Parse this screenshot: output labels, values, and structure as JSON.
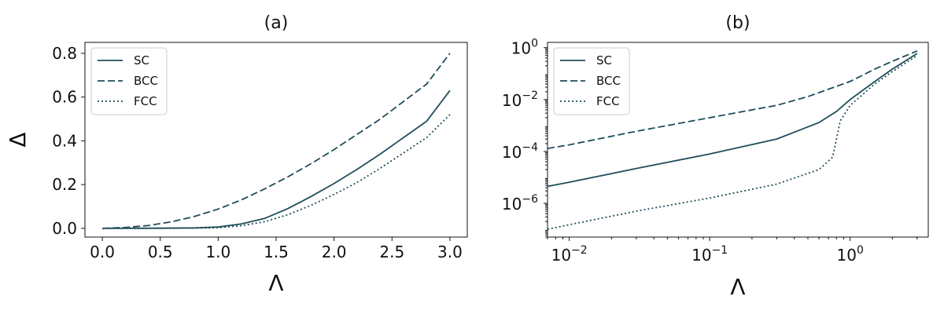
{
  "chart_data": [
    {
      "id": "a",
      "type": "line",
      "title": "(a)",
      "xlabel": "Λ",
      "ylabel": "Δ",
      "xscale": "linear",
      "yscale": "linear",
      "xlim": [
        -0.15,
        3.15
      ],
      "ylim": [
        -0.04,
        0.85
      ],
      "xticks": [
        0.0,
        0.5,
        1.0,
        1.5,
        2.0,
        2.5,
        3.0
      ],
      "xtick_labels": [
        "0.0",
        "0.5",
        "1.0",
        "1.5",
        "2.0",
        "2.5",
        "3.0"
      ],
      "yticks": [
        0.0,
        0.2,
        0.4,
        0.6,
        0.8
      ],
      "ytick_labels": [
        "0.0",
        "0.2",
        "0.4",
        "0.6",
        "0.8"
      ],
      "grid": false,
      "legend": "top-left",
      "series": [
        {
          "name": "SC",
          "style": "solid",
          "x": [
            0,
            0.5,
            0.8,
            1.0,
            1.2,
            1.4,
            1.6,
            1.8,
            2.0,
            2.2,
            2.4,
            2.6,
            2.8,
            3.0
          ],
          "y": [
            0,
            0.0005,
            0.002,
            0.006,
            0.02,
            0.045,
            0.09,
            0.145,
            0.205,
            0.27,
            0.34,
            0.415,
            0.49,
            0.63
          ]
        },
        {
          "name": "BCC",
          "style": "dashed",
          "x": [
            0,
            0.2,
            0.4,
            0.6,
            0.8,
            1.0,
            1.2,
            1.4,
            1.6,
            1.8,
            2.0,
            2.2,
            2.4,
            2.6,
            2.8,
            3.0
          ],
          "y": [
            0,
            0.004,
            0.013,
            0.03,
            0.055,
            0.088,
            0.13,
            0.18,
            0.235,
            0.295,
            0.36,
            0.43,
            0.5,
            0.58,
            0.66,
            0.8
          ]
        },
        {
          "name": "FCC",
          "style": "dotted",
          "x": [
            0,
            0.5,
            0.8,
            1.0,
            1.2,
            1.4,
            1.6,
            1.8,
            2.0,
            2.2,
            2.4,
            2.6,
            2.8,
            3.0
          ],
          "y": [
            0,
            0.0003,
            0.001,
            0.003,
            0.012,
            0.03,
            0.062,
            0.105,
            0.155,
            0.21,
            0.275,
            0.345,
            0.415,
            0.52
          ]
        }
      ]
    },
    {
      "id": "b",
      "type": "line",
      "title": "(b)",
      "xlabel": "Λ",
      "ylabel": "",
      "xscale": "log",
      "yscale": "log",
      "xlim": [
        0.007,
        3.6
      ],
      "ylim": [
        5e-08,
        1.6
      ],
      "xticks": [
        0.01,
        0.1,
        1
      ],
      "xtick_labels": [
        [
          "10",
          "−2"
        ],
        [
          "10",
          "−1"
        ],
        [
          "10",
          "0"
        ]
      ],
      "yticks": [
        1e-06,
        0.0001,
        0.01,
        1
      ],
      "ytick_labels": [
        [
          "10",
          "−6"
        ],
        [
          "10",
          "−4"
        ],
        [
          "10",
          "−2"
        ],
        [
          "10",
          "0"
        ]
      ],
      "grid": false,
      "legend": "top-left",
      "series": [
        {
          "name": "SC",
          "style": "solid",
          "x": [
            0.007,
            0.01,
            0.03,
            0.1,
            0.3,
            0.6,
            0.8,
            1.0,
            1.5,
            2.0,
            3.0
          ],
          "y": [
            4.5e-06,
            6.5e-06,
            2.2e-05,
            8e-05,
            0.0003,
            0.0013,
            0.0035,
            0.01,
            0.05,
            0.15,
            0.6
          ]
        },
        {
          "name": "BCC",
          "style": "dashed",
          "x": [
            0.007,
            0.01,
            0.03,
            0.1,
            0.3,
            0.5,
            1.0,
            1.5,
            2.0,
            3.0
          ],
          "y": [
            0.00013,
            0.00018,
            0.0006,
            0.002,
            0.006,
            0.013,
            0.05,
            0.15,
            0.3,
            0.75
          ]
        },
        {
          "name": "FCC",
          "style": "dotted",
          "x": [
            0.007,
            0.01,
            0.03,
            0.1,
            0.3,
            0.6,
            0.75,
            0.8,
            0.85,
            1.0,
            1.5,
            2.0,
            3.0
          ],
          "y": [
            1e-07,
            1.5e-07,
            5e-07,
            1.6e-06,
            5.5e-06,
            2e-05,
            6e-05,
            0.0003,
            0.0015,
            0.006,
            0.04,
            0.12,
            0.5
          ]
        }
      ]
    }
  ]
}
